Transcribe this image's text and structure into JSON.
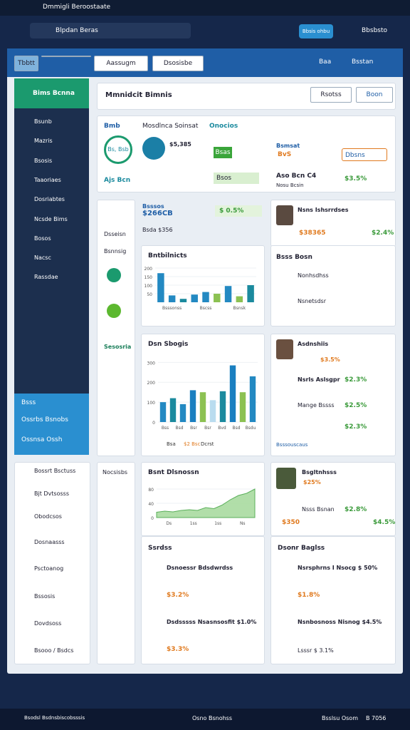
{
  "browser": {
    "tab_title": "Dmmigli Beroostaate",
    "address": "Blpdan Beras",
    "badge": "Bbsis ohbu",
    "user": "Bbsbsto"
  },
  "header": {
    "buttons": [
      "Tbbtt",
      "Aassugm",
      "Dsosisbe"
    ],
    "right": [
      "Baa",
      "Bsstan"
    ]
  },
  "sidebar": {
    "title": "Bims Bcnna",
    "items": [
      "Bsunb",
      "Mazris",
      "Bsosis",
      "Taaoriaes",
      "Dosriabtes",
      "Ncsde Bims",
      "Bosos",
      "Nacsc",
      "Rassdae"
    ],
    "section": "Bsss",
    "section_items": [
      "Ossrbs Bsnobs",
      "Ossnsa Ossh"
    ]
  },
  "lower_menu": [
    "Bossrt Bsctuss",
    "Bjt Dvtsosss",
    "Obodcsos",
    "Dosnaasss",
    "Psctoanog",
    "Bssosis",
    "Dovdsoss",
    "Bsooo / Bsdcs"
  ],
  "main": {
    "title": "Mmnidcit Bimnis",
    "buttons": [
      "Rsotss",
      "Boon"
    ]
  },
  "summary": {
    "tabs": [
      "Bmb",
      "Mosdlnca Soinsat",
      "Onocios"
    ],
    "circle": "Bs, Bsb",
    "amount": "$5,385",
    "tags": [
      "Bsas",
      "Bsos"
    ],
    "labels": [
      "Bsmsat",
      "BvS",
      "Dbsns"
    ],
    "footer": "Ajs Bcn",
    "right_title": "Aso Bcn C4",
    "right_value": "$3.5%",
    "right_sub": "Nosu Bcsin"
  },
  "side_labels": [
    "Dsseisn",
    "Bsnnsig",
    "Sesosria",
    "Nocsisbs"
  ],
  "stat": {
    "title": "Bsssos",
    "value": "$266CB",
    "sub": "Bsda $356",
    "tag": "$ 0.5%"
  },
  "chart1": {
    "title": "Bntbilnicts",
    "values": [
      170,
      40,
      20,
      45,
      60,
      50,
      95,
      35,
      100
    ],
    "colors": [
      "#2389c2",
      "#2389c2",
      "#1b8a9e",
      "#2389c2",
      "#2389c2",
      "#8cc152",
      "#2389c2",
      "#8cc152",
      "#1b8a9e"
    ],
    "ylim": [
      0,
      200
    ],
    "yticks": [
      50,
      100,
      150,
      200
    ],
    "xlabels": [
      "Bsssonss",
      "Bscss",
      "Bsnsk"
    ]
  },
  "chart2": {
    "title": "Dsn Sbogis",
    "values": [
      100,
      120,
      90,
      160,
      150,
      110,
      155,
      285,
      150,
      230
    ],
    "colors": [
      "#2389c2",
      "#1b8a9e",
      "#2389c2",
      "#1a7fc0",
      "#8cc152",
      "#b9dcef",
      "#1b8a9e",
      "#1a7fc0",
      "#8cc152",
      "#2389c2"
    ],
    "ylim": [
      0,
      330
    ],
    "yticks": [
      0,
      100,
      200,
      300
    ],
    "xlabels": [
      "Bss",
      "Bsd",
      "Bsr",
      "Bsr",
      "Bvd",
      "Bsd",
      "Bsdu"
    ],
    "legend": [
      "Bsa",
      "$2 Bsc",
      "Dcrst"
    ]
  },
  "chart3": {
    "title": "Bsnt Dlsnossn",
    "values": [
      15,
      18,
      16,
      20,
      22,
      20,
      28,
      25,
      35,
      50,
      62,
      68,
      80
    ],
    "ylim": [
      0,
      100
    ],
    "yticks": [
      0,
      40,
      80
    ],
    "xlabels": [
      "Ds",
      "1ss",
      "1ss",
      "Ns"
    ]
  },
  "people1": {
    "name": "Nsns Ishsrrdses",
    "value": "$38365",
    "pct": "$2.4%",
    "list_title": "Bsss Bosn",
    "items": [
      "Nonhsdhss",
      "Nsnetsdsr"
    ]
  },
  "people2": {
    "name": "Asdnshiis",
    "pct": "$3.5%",
    "rows": [
      [
        "Nsrls Aslsgpr",
        "$2.3%"
      ],
      [
        "Mange Bssss",
        "$2.5%"
      ],
      [
        "",
        "$2.3%"
      ]
    ],
    "footer": "Bsssouscaus"
  },
  "people3": {
    "name": "Bsgltnhsss",
    "pct": "$25%",
    "row": "Nsss Bsnan",
    "row_pct": "$2.8%",
    "value": "$350",
    "value_pct": "$4.5%"
  },
  "sales": {
    "title": "Ssrdss",
    "items": [
      [
        "Dsnoessr Bdsdwrdss",
        "$3.2%"
      ],
      [
        "Dsdsssss Nsasnsosfit $1.0%",
        "$3.3%"
      ]
    ]
  },
  "board": {
    "title": "Dsonr Baglss",
    "items": [
      [
        "Nsrsphrns I Nsocg $ 50%",
        "$1.8%"
      ],
      [
        "Nsnbosnoss Nisnog $4.5%",
        "Lsssr $ 3.1%"
      ]
    ]
  },
  "taskbar": [
    "Bsodsl Bsdnsbiscobsssis",
    "Osno Bsnohss",
    "Bsslsu Osom",
    "B 7056"
  ]
}
